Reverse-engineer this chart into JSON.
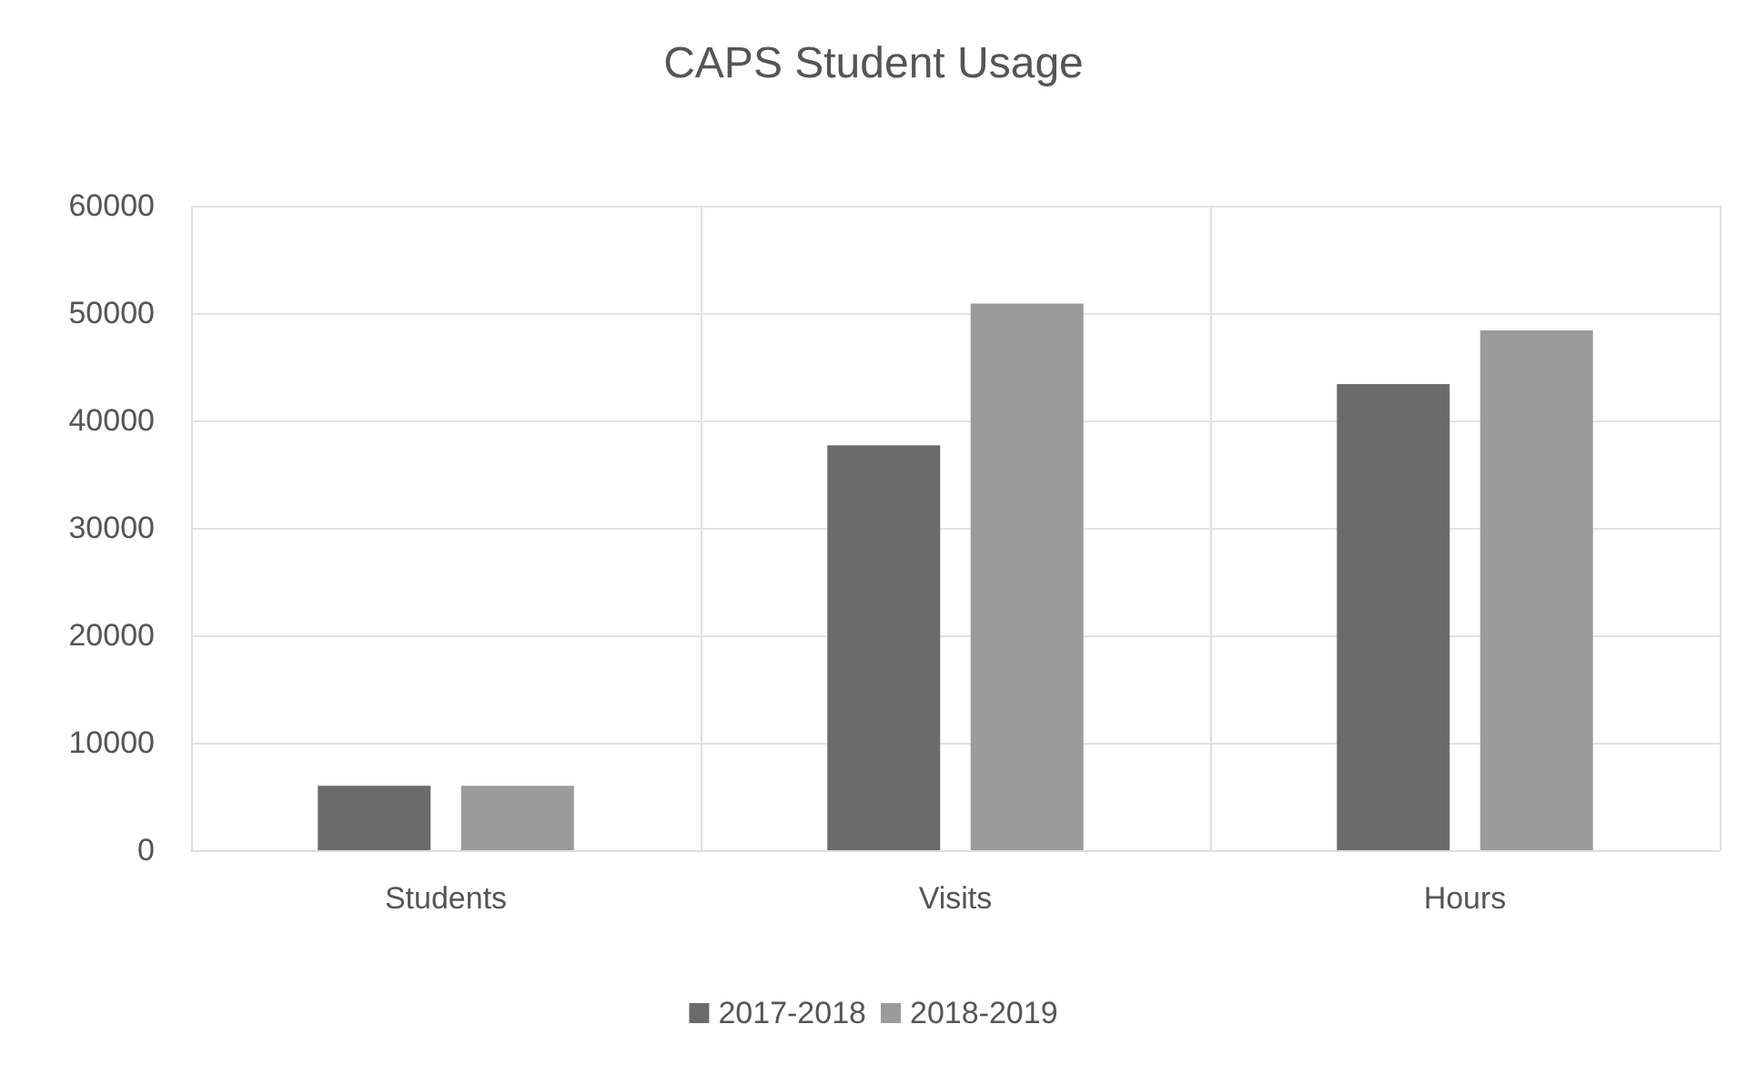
{
  "chart_data": {
    "type": "bar",
    "title": "CAPS Student Usage",
    "categories": [
      "Students",
      "Visits",
      "Hours"
    ],
    "series": [
      {
        "name": "2017-2018",
        "color": "#6b6b6b",
        "values": [
          6000,
          37700,
          43400
        ]
      },
      {
        "name": "2018-2019",
        "color": "#9b9b9b",
        "values": [
          6000,
          50900,
          48400
        ]
      }
    ],
    "ylim": [
      0,
      60000
    ],
    "yticks": [
      0,
      10000,
      20000,
      30000,
      40000,
      50000,
      60000
    ],
    "grid": true,
    "legend": "bottom"
  }
}
